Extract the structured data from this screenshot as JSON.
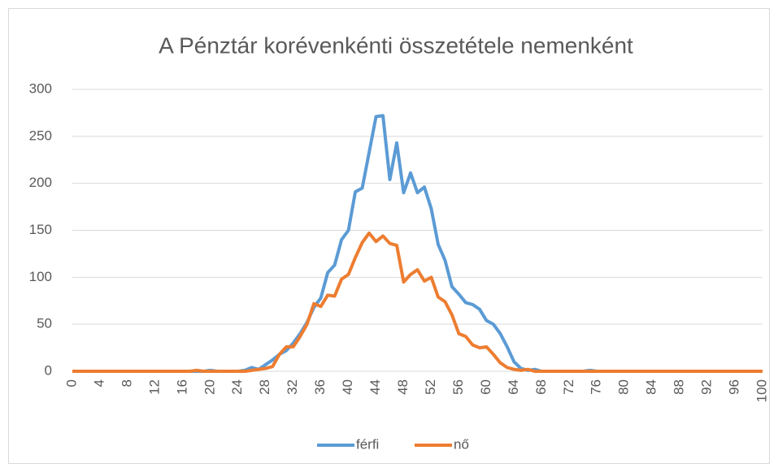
{
  "chart_data": {
    "type": "line",
    "title": "A Pénztár korévenkénti összetétele nemenként",
    "x": [
      0,
      1,
      2,
      3,
      4,
      5,
      6,
      7,
      8,
      9,
      10,
      11,
      12,
      13,
      14,
      15,
      16,
      17,
      18,
      19,
      20,
      21,
      22,
      23,
      24,
      25,
      26,
      27,
      28,
      29,
      30,
      31,
      32,
      33,
      34,
      35,
      36,
      37,
      38,
      39,
      40,
      41,
      42,
      43,
      44,
      45,
      46,
      47,
      48,
      49,
      50,
      51,
      52,
      53,
      54,
      55,
      56,
      57,
      58,
      59,
      60,
      61,
      62,
      63,
      64,
      65,
      66,
      67,
      68,
      69,
      70,
      71,
      72,
      73,
      74,
      75,
      76,
      77,
      78,
      79,
      80,
      81,
      82,
      83,
      84,
      85,
      86,
      87,
      88,
      89,
      90,
      91,
      92,
      93,
      94,
      95,
      96,
      97,
      98,
      99,
      100
    ],
    "series": [
      {
        "name": "férfi",
        "color": "#5b9bd5",
        "values": [
          0,
          0,
          0,
          0,
          0,
          0,
          0,
          0,
          0,
          0,
          0,
          0,
          0,
          0,
          0,
          0,
          0,
          0,
          0,
          0,
          1,
          0,
          0,
          0,
          0,
          1,
          4,
          2,
          7,
          12,
          18,
          22,
          30,
          40,
          52,
          68,
          78,
          105,
          113,
          140,
          150,
          191,
          195,
          233,
          271,
          272,
          204,
          243,
          190,
          211,
          190,
          196,
          173,
          135,
          118,
          90,
          82,
          73,
          71,
          66,
          54,
          50,
          40,
          26,
          10,
          3,
          1,
          2,
          0,
          0,
          0,
          0,
          0,
          0,
          0,
          1,
          0,
          0,
          0,
          0,
          0,
          0,
          0,
          0,
          0,
          0,
          0,
          0,
          0,
          0,
          0,
          0,
          0,
          0,
          0,
          0,
          0,
          0,
          0,
          0,
          0
        ]
      },
      {
        "name": "nő",
        "color": "#ed7d31",
        "values": [
          0,
          0,
          0,
          0,
          0,
          0,
          0,
          0,
          0,
          0,
          0,
          0,
          0,
          0,
          0,
          0,
          0,
          0,
          1,
          0,
          0,
          0,
          0,
          0,
          0,
          0,
          1,
          2,
          3,
          5,
          18,
          26,
          26,
          37,
          50,
          72,
          69,
          81,
          80,
          98,
          103,
          121,
          137,
          147,
          138,
          144,
          136,
          134,
          95,
          103,
          108,
          96,
          100,
          79,
          74,
          60,
          40,
          37,
          28,
          25,
          26,
          18,
          9,
          4,
          2,
          1,
          2,
          0,
          0,
          0,
          0,
          0,
          0,
          0,
          0,
          0,
          0,
          0,
          0,
          0,
          0,
          0,
          0,
          0,
          0,
          0,
          0,
          0,
          0,
          0,
          0,
          0,
          0,
          0,
          0,
          0,
          0,
          0,
          0,
          0,
          0
        ]
      }
    ],
    "xlim": [
      0,
      100
    ],
    "xticks": [
      0,
      4,
      8,
      12,
      16,
      20,
      24,
      28,
      32,
      36,
      40,
      44,
      48,
      52,
      56,
      60,
      64,
      68,
      72,
      76,
      80,
      84,
      88,
      92,
      96,
      100
    ],
    "ylim": [
      0,
      300
    ],
    "yticks": [
      0,
      50,
      100,
      150,
      200,
      250,
      300
    ],
    "grid": true,
    "legend": "bottom"
  }
}
